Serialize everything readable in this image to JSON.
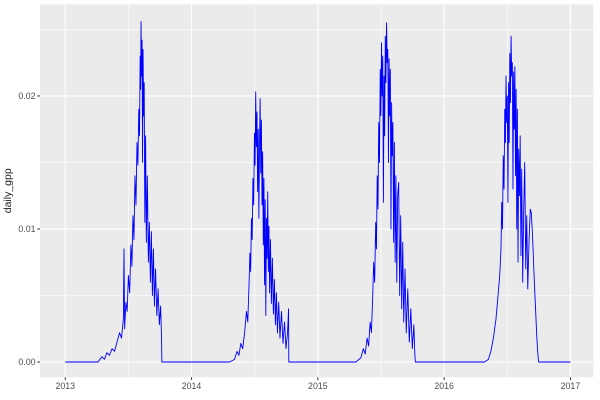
{
  "style": {
    "outer_background": "#FFFFFF",
    "panel_background": "#EBEBEB",
    "grid_color": "#FFFFFF",
    "line_color": "#0000FF",
    "axis_text_color": "#4D4D4D",
    "axis_title_color": "#1A1A1A",
    "tick_mark_color": "#333333"
  },
  "chart_data": {
    "type": "line",
    "title": "",
    "xlabel": "",
    "ylabel": "daily_gpp",
    "legend": "none",
    "grid": "white major+minor on grey panel (ggplot2 theme_grey)",
    "xlim": [
      2012.8,
      2017.181
    ],
    "ylim": [
      -0.00115,
      0.02689
    ],
    "x_major_ticks": [
      {
        "value": 2013,
        "label": "2013"
      },
      {
        "value": 2014,
        "label": "2014"
      },
      {
        "value": 2015,
        "label": "2015"
      },
      {
        "value": 2016,
        "label": "2016"
      },
      {
        "value": 2017,
        "label": "2017"
      }
    ],
    "x_minor_ticks": [
      2013.5,
      2014.5,
      2015.5,
      2016.5
    ],
    "y_major_ticks": [
      {
        "value": 0.0,
        "label": "0.00"
      },
      {
        "value": 0.01,
        "label": "0.01"
      },
      {
        "value": 0.02,
        "label": "0.02"
      }
    ],
    "y_minor_ticks": [
      0.005,
      0.015,
      0.025
    ],
    "series": [
      {
        "name": "daily_gpp",
        "color": "#0000FF",
        "points": [
          [
            2013.0,
            0
          ],
          [
            2013.15,
            0
          ],
          [
            2013.26,
            0
          ],
          [
            2013.29,
            0.0004
          ],
          [
            2013.31,
            0.0002
          ],
          [
            2013.33,
            0.0007
          ],
          [
            2013.35,
            0.0005
          ],
          [
            2013.37,
            0.001
          ],
          [
            2013.39,
            0.0008
          ],
          [
            2013.41,
            0.0015
          ],
          [
            2013.43,
            0.0022
          ],
          [
            2013.445,
            0.0018
          ],
          [
            2013.46,
            0.0032
          ],
          [
            2013.465,
            0.0085
          ],
          [
            2013.47,
            0.0025
          ],
          [
            2013.48,
            0.0045
          ],
          [
            2013.49,
            0.0038
          ],
          [
            2013.5,
            0.0065
          ],
          [
            2013.51,
            0.0052
          ],
          [
            2013.52,
            0.0088
          ],
          [
            2013.528,
            0.0072
          ],
          [
            2013.536,
            0.011
          ],
          [
            2013.544,
            0.0092
          ],
          [
            2013.552,
            0.014
          ],
          [
            2013.56,
            0.0118
          ],
          [
            2013.568,
            0.0165
          ],
          [
            2013.575,
            0.0148
          ],
          [
            2013.582,
            0.019
          ],
          [
            2013.588,
            0.017
          ],
          [
            2013.593,
            0.023
          ],
          [
            2013.597,
            0.0205
          ],
          [
            2013.6,
            0.0256
          ],
          [
            2013.604,
            0.0215
          ],
          [
            2013.608,
            0.0242
          ],
          [
            2013.612,
            0.015
          ],
          [
            2013.616,
            0.0235
          ],
          [
            2013.62,
            0.0185
          ],
          [
            2013.625,
            0.021
          ],
          [
            2013.63,
            0.0105
          ],
          [
            2013.636,
            0.017
          ],
          [
            2013.642,
            0.009
          ],
          [
            2013.65,
            0.014
          ],
          [
            2013.658,
            0.0075
          ],
          [
            2013.666,
            0.0105
          ],
          [
            2013.674,
            0.006
          ],
          [
            2013.682,
            0.0098
          ],
          [
            2013.69,
            0.005
          ],
          [
            2013.698,
            0.0085
          ],
          [
            2013.706,
            0.0042
          ],
          [
            2013.715,
            0.007
          ],
          [
            2013.725,
            0.0035
          ],
          [
            2013.735,
            0.0055
          ],
          [
            2013.745,
            0.0028
          ],
          [
            2013.755,
            0.0042
          ],
          [
            2013.762,
            0.002
          ],
          [
            2013.765,
            0
          ],
          [
            2013.9,
            0
          ],
          [
            2014.05,
            0
          ],
          [
            2014.2,
            0
          ],
          [
            2014.3,
            0
          ],
          [
            2014.34,
            0.0002
          ],
          [
            2014.36,
            0.0008
          ],
          [
            2014.375,
            0.0005
          ],
          [
            2014.39,
            0.0014
          ],
          [
            2014.405,
            0.001
          ],
          [
            2014.42,
            0.0022
          ],
          [
            2014.435,
            0.0038
          ],
          [
            2014.445,
            0.003
          ],
          [
            2014.455,
            0.0058
          ],
          [
            2014.462,
            0.0082
          ],
          [
            2014.468,
            0.0068
          ],
          [
            2014.474,
            0.0108
          ],
          [
            2014.48,
            0.0092
          ],
          [
            2014.486,
            0.0138
          ],
          [
            2014.492,
            0.0118
          ],
          [
            2014.498,
            0.0172
          ],
          [
            2014.503,
            0.0148
          ],
          [
            2014.508,
            0.0203
          ],
          [
            2014.513,
            0.0162
          ],
          [
            2014.518,
            0.0188
          ],
          [
            2014.523,
            0.0128
          ],
          [
            2014.528,
            0.0175
          ],
          [
            2014.533,
            0.0108
          ],
          [
            2014.538,
            0.0162
          ],
          [
            2014.543,
            0.0198
          ],
          [
            2014.548,
            0.0142
          ],
          [
            2014.553,
            0.0182
          ],
          [
            2014.558,
            0.0118
          ],
          [
            2014.563,
            0.0158
          ],
          [
            2014.568,
            0.0088
          ],
          [
            2014.573,
            0.0138
          ],
          [
            2014.578,
            0.0058
          ],
          [
            2014.583,
            0.0122
          ],
          [
            2014.588,
            0.0035
          ],
          [
            2014.593,
            0.0108
          ],
          [
            2014.598,
            0.0078
          ],
          [
            2014.603,
            0.0128
          ],
          [
            2014.608,
            0.0068
          ],
          [
            2014.613,
            0.0102
          ],
          [
            2014.618,
            0.0052
          ],
          [
            2014.625,
            0.0092
          ],
          [
            2014.632,
            0.0044
          ],
          [
            2014.64,
            0.0078
          ],
          [
            2014.648,
            0.0036
          ],
          [
            2014.656,
            0.0062
          ],
          [
            2014.664,
            0.0028
          ],
          [
            2014.672,
            0.0052
          ],
          [
            2014.68,
            0.0022
          ],
          [
            2014.69,
            0.0045
          ],
          [
            2014.7,
            0.0018
          ],
          [
            2014.712,
            0.0038
          ],
          [
            2014.724,
            0.0014
          ],
          [
            2014.736,
            0.003
          ],
          [
            2014.748,
            0.001
          ],
          [
            2014.76,
            0.0022
          ],
          [
            2014.768,
            0.004
          ],
          [
            2014.77,
            0
          ],
          [
            2014.9,
            0
          ],
          [
            2015.05,
            0
          ],
          [
            2015.2,
            0
          ],
          [
            2015.3,
            0
          ],
          [
            2015.34,
            0.0003
          ],
          [
            2015.36,
            0.001
          ],
          [
            2015.375,
            0.0006
          ],
          [
            2015.39,
            0.0018
          ],
          [
            2015.402,
            0.0012
          ],
          [
            2015.414,
            0.003
          ],
          [
            2015.424,
            0.0022
          ],
          [
            2015.434,
            0.0048
          ],
          [
            2015.442,
            0.0075
          ],
          [
            2015.45,
            0.006
          ],
          [
            2015.458,
            0.0105
          ],
          [
            2015.464,
            0.0085
          ],
          [
            2015.47,
            0.014
          ],
          [
            2015.476,
            0.0115
          ],
          [
            2015.482,
            0.018
          ],
          [
            2015.488,
            0.015
          ],
          [
            2015.494,
            0.022
          ],
          [
            2015.499,
            0.0185
          ],
          [
            2015.504,
            0.024
          ],
          [
            2015.509,
            0.02
          ],
          [
            2015.514,
            0.023
          ],
          [
            2015.519,
            0.012
          ],
          [
            2015.524,
            0.0215
          ],
          [
            2015.529,
            0.017
          ],
          [
            2015.534,
            0.0245
          ],
          [
            2015.539,
            0.021
          ],
          [
            2015.544,
            0.0255
          ],
          [
            2015.549,
            0.0225
          ],
          [
            2015.554,
            0.0235
          ],
          [
            2015.559,
            0.015
          ],
          [
            2015.564,
            0.0228
          ],
          [
            2015.569,
            0.0185
          ],
          [
            2015.574,
            0.022
          ],
          [
            2015.579,
            0.01
          ],
          [
            2015.584,
            0.0195
          ],
          [
            2015.589,
            0.0155
          ],
          [
            2015.594,
            0.018
          ],
          [
            2015.6,
            0.009
          ],
          [
            2015.606,
            0.0165
          ],
          [
            2015.612,
            0.0075
          ],
          [
            2015.618,
            0.014
          ],
          [
            2015.625,
            0.006
          ],
          [
            2015.632,
            0.0125
          ],
          [
            2015.64,
            0.0135
          ],
          [
            2015.648,
            0.005
          ],
          [
            2015.656,
            0.011
          ],
          [
            2015.664,
            0.004
          ],
          [
            2015.672,
            0.009
          ],
          [
            2015.68,
            0.003
          ],
          [
            2015.69,
            0.007
          ],
          [
            2015.7,
            0.0022
          ],
          [
            2015.712,
            0.0055
          ],
          [
            2015.724,
            0.0015
          ],
          [
            2015.736,
            0.004
          ],
          [
            2015.748,
            0.001
          ],
          [
            2015.76,
            0.0028
          ],
          [
            2015.768,
            0.0006
          ],
          [
            2015.772,
            0
          ],
          [
            2015.9,
            0
          ],
          [
            2016.05,
            0
          ],
          [
            2016.2,
            0
          ],
          [
            2016.32,
            0
          ],
          [
            2016.35,
            0.0002
          ],
          [
            2016.37,
            0.0008
          ],
          [
            2016.39,
            0.0018
          ],
          [
            2016.41,
            0.0032
          ],
          [
            2016.425,
            0.0048
          ],
          [
            2016.44,
            0.0065
          ],
          [
            2016.45,
            0.0085
          ],
          [
            2016.456,
            0.012
          ],
          [
            2016.462,
            0.01
          ],
          [
            2016.468,
            0.0155
          ],
          [
            2016.474,
            0.013
          ],
          [
            2016.48,
            0.019
          ],
          [
            2016.485,
            0.0165
          ],
          [
            2016.49,
            0.0215
          ],
          [
            2016.495,
            0.018
          ],
          [
            2016.5,
            0.02
          ],
          [
            2016.505,
            0.012
          ],
          [
            2016.51,
            0.021
          ],
          [
            2016.515,
            0.0165
          ],
          [
            2016.52,
            0.0232
          ],
          [
            2016.525,
            0.0195
          ],
          [
            2016.53,
            0.0245
          ],
          [
            2016.535,
            0.0215
          ],
          [
            2016.54,
            0.0225
          ],
          [
            2016.545,
            0.013
          ],
          [
            2016.55,
            0.0218
          ],
          [
            2016.555,
            0.0175
          ],
          [
            2016.56,
            0.0222
          ],
          [
            2016.565,
            0.014
          ],
          [
            2016.57,
            0.0205
          ],
          [
            2016.575,
            0.01
          ],
          [
            2016.58,
            0.019
          ],
          [
            2016.585,
            0.0075
          ],
          [
            2016.59,
            0.016
          ],
          [
            2016.596,
            0.0125
          ],
          [
            2016.602,
            0.017
          ],
          [
            2016.608,
            0.008
          ],
          [
            2016.614,
            0.0145
          ],
          [
            2016.622,
            0.006
          ],
          [
            2016.63,
            0.0115
          ],
          [
            2016.638,
            0.015
          ],
          [
            2016.646,
            0.007
          ],
          [
            2016.654,
            0.011
          ],
          [
            2016.662,
            0.0055
          ],
          [
            2016.672,
            0.009
          ],
          [
            2016.682,
            0.0115
          ],
          [
            2016.69,
            0.0112
          ],
          [
            2016.7,
            0.0095
          ],
          [
            2016.71,
            0.007
          ],
          [
            2016.718,
            0.0052
          ],
          [
            2016.726,
            0.0035
          ],
          [
            2016.734,
            0.0018
          ],
          [
            2016.742,
            0.0006
          ],
          [
            2016.748,
            0
          ],
          [
            2016.9,
            0
          ],
          [
            2017.0,
            0
          ]
        ]
      }
    ]
  }
}
